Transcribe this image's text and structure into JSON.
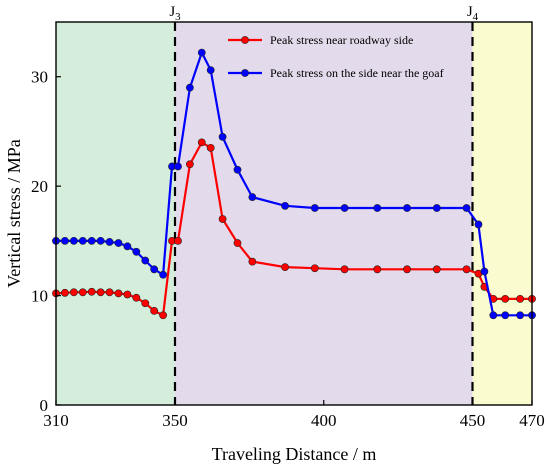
{
  "chart_data": {
    "type": "line",
    "xlabel": "Traveling Distance / m",
    "ylabel": "Vertical stress / MPa",
    "xlim": [
      310,
      470
    ],
    "ylim": [
      0,
      35
    ],
    "x_ticks": [
      310,
      350,
      400,
      450,
      470
    ],
    "y_ticks": [
      0,
      10,
      20,
      30
    ],
    "grid": false,
    "legend_position": "top-right",
    "regions": [
      {
        "from": 310,
        "to": 350,
        "color": "#d4eedb"
      },
      {
        "from": 350,
        "to": 450,
        "color": "#e3dbeb"
      },
      {
        "from": 450,
        "to": 470,
        "color": "#fafbcf"
      }
    ],
    "markers": [
      {
        "x": 350,
        "label": "J",
        "sub": "3"
      },
      {
        "x": 450,
        "label": "J",
        "sub": "4"
      }
    ],
    "series": [
      {
        "name": "Peak stress near roadway side",
        "color": "#ff0000",
        "x": [
          310,
          313,
          316,
          319,
          322,
          325,
          328,
          331,
          334,
          337,
          340,
          343,
          346,
          349,
          351,
          355,
          359,
          362,
          366,
          371,
          376,
          387,
          397,
          407,
          418,
          428,
          438,
          448,
          452,
          454,
          457,
          461,
          466,
          470
        ],
        "values": [
          10.2,
          10.25,
          10.3,
          10.3,
          10.35,
          10.3,
          10.3,
          10.2,
          10.1,
          9.8,
          9.3,
          8.6,
          8.2,
          15.0,
          15.0,
          22.0,
          24.0,
          23.5,
          17.0,
          14.8,
          13.1,
          12.6,
          12.5,
          12.4,
          12.4,
          12.4,
          12.4,
          12.4,
          12.0,
          10.8,
          9.7,
          9.7,
          9.7,
          9.7
        ]
      },
      {
        "name": "Peak stress on the side near the goaf",
        "color": "#0000ff",
        "x": [
          310,
          313,
          316,
          319,
          322,
          325,
          328,
          331,
          334,
          337,
          340,
          343,
          346,
          349,
          351,
          355,
          359,
          362,
          366,
          371,
          376,
          387,
          397,
          407,
          418,
          428,
          438,
          448,
          452,
          454,
          457,
          461,
          466,
          470
        ],
        "values": [
          15.0,
          15.0,
          15.0,
          15.0,
          15.0,
          15.0,
          14.9,
          14.8,
          14.5,
          14.0,
          13.2,
          12.4,
          11.9,
          21.8,
          21.8,
          29.0,
          32.2,
          30.6,
          24.5,
          21.5,
          19.0,
          18.2,
          18.0,
          18.0,
          18.0,
          18.0,
          18.0,
          18.0,
          16.5,
          12.2,
          8.2,
          8.2,
          8.2,
          8.2
        ]
      }
    ]
  }
}
